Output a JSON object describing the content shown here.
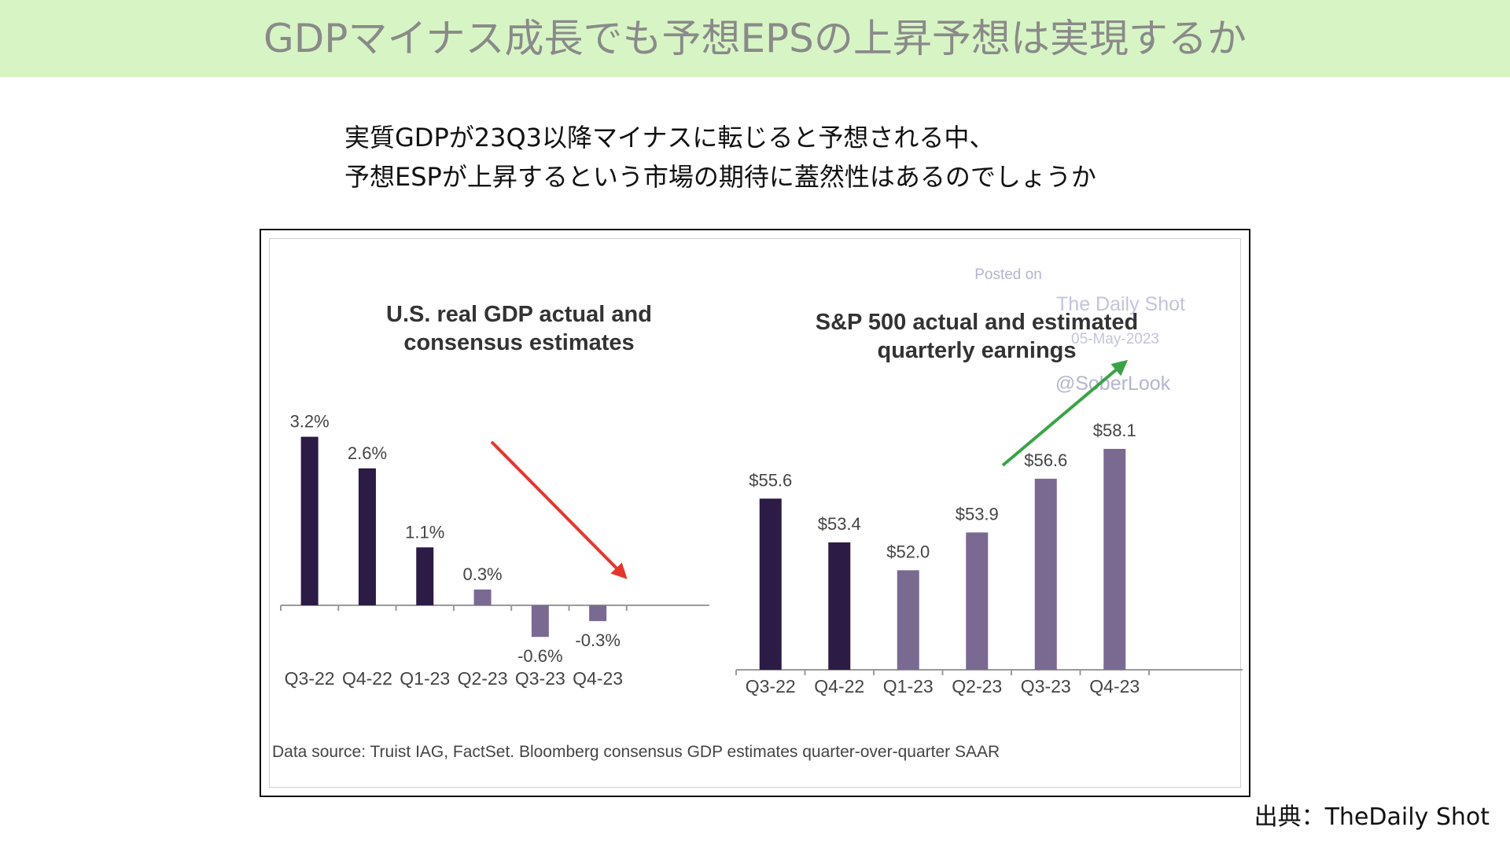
{
  "header": {
    "title": "GDPマイナス成長でも予想EPSの上昇予想は実現するか"
  },
  "intro": {
    "line1": "実質GDPが23Q3以降マイナスに転じると予想される中、",
    "line2": "予想ESPが上昇するという市場の期待に蓋然性はあるのでしょうか"
  },
  "watermark": {
    "line1": "Posted on",
    "line2": "The Daily Shot",
    "line3": "05-May-2023",
    "line4": "@SoberLook"
  },
  "footnote": "Data source: Truist IAG, FactSet. Bloomberg consensus GDP estimates quarter-over-quarter SAAR",
  "source_credit": "出典：TheDaily Shot",
  "colors": {
    "actual": "#2b1b45",
    "estimate": "#7a6a92",
    "down_arrow": "#e8352b",
    "up_arrow": "#3aa346",
    "banner": "#d7f5c4",
    "banner_text": "#8a8a8a"
  },
  "chart_data": [
    {
      "type": "bar",
      "title_line1": "U.S. real GDP actual and",
      "title_line2": "consensus estimates",
      "categories": [
        "Q3-22",
        "Q4-22",
        "Q1-23",
        "Q2-23",
        "Q3-23",
        "Q4-23"
      ],
      "values": [
        3.2,
        2.6,
        1.1,
        0.3,
        -0.6,
        -0.3
      ],
      "labels": [
        "3.2%",
        "2.6%",
        "1.1%",
        "0.3%",
        "-0.6%",
        "-0.3%"
      ],
      "kind": [
        "actual",
        "actual",
        "actual",
        "estimate",
        "estimate",
        "estimate"
      ],
      "ylim": [
        -0.6,
        3.2
      ],
      "grid": false,
      "annotation": "down-arrow"
    },
    {
      "type": "bar",
      "title_line1": "S&P 500 actual and estimated",
      "title_line2": "quarterly earnings",
      "categories": [
        "Q3-22",
        "Q4-22",
        "Q1-23",
        "Q2-23",
        "Q3-23",
        "Q4-23"
      ],
      "values": [
        55.6,
        53.4,
        52.0,
        53.9,
        56.6,
        58.1
      ],
      "labels": [
        "$55.6",
        "$53.4",
        "$52.0",
        "$53.9",
        "$56.6",
        "$58.1"
      ],
      "kind": [
        "actual",
        "actual",
        "estimate",
        "estimate",
        "estimate",
        "estimate"
      ],
      "ylim": [
        47.0,
        58.1
      ],
      "grid": false,
      "annotation": "up-arrow"
    }
  ]
}
